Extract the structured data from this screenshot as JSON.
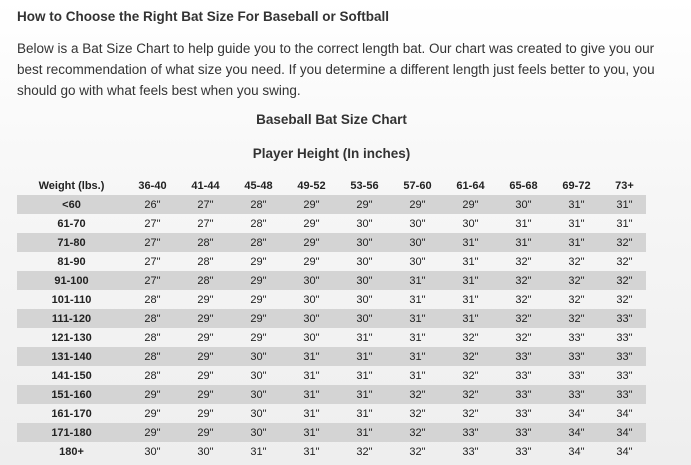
{
  "header": {
    "title": "How to Choose the Right Bat Size For Baseball or Softball"
  },
  "intro": "Below is a Bat Size Chart to help guide you to the correct length bat. Our chart was created to give you our best recommendation of what size you need. If you determine a different length just feels better to you, you should go with what feels best when you swing.",
  "table": {
    "title": "Baseball Bat Size Chart",
    "subtitle": "Player Height (In inches)",
    "header": [
      "Weight (lbs.)",
      "36-40",
      "41-44",
      "45-48",
      "49-52",
      "53-56",
      "57-60",
      "61-64",
      "65-68",
      "69-72",
      "73+"
    ],
    "rows": [
      [
        "<60",
        "26\"",
        "27\"",
        "28\"",
        "29\"",
        "29\"",
        "29\"",
        "29\"",
        "30\"",
        "31\"",
        "31\""
      ],
      [
        "61-70",
        "27\"",
        "27\"",
        "28\"",
        "29\"",
        "30\"",
        "30\"",
        "30\"",
        "31\"",
        "31\"",
        "31\""
      ],
      [
        "71-80",
        "27\"",
        "28\"",
        "28\"",
        "29\"",
        "30\"",
        "30\"",
        "31\"",
        "31\"",
        "31\"",
        "32\""
      ],
      [
        "81-90",
        "27\"",
        "28\"",
        "29\"",
        "29\"",
        "30\"",
        "30\"",
        "31\"",
        "32\"",
        "32\"",
        "32\""
      ],
      [
        "91-100",
        "27\"",
        "28\"",
        "29\"",
        "30\"",
        "30\"",
        "31\"",
        "31\"",
        "32\"",
        "32\"",
        "32\""
      ],
      [
        "101-110",
        "28\"",
        "29\"",
        "29\"",
        "30\"",
        "30\"",
        "31\"",
        "31\"",
        "32\"",
        "32\"",
        "32\""
      ],
      [
        "111-120",
        "28\"",
        "29\"",
        "29\"",
        "30\"",
        "30\"",
        "31\"",
        "31\"",
        "32\"",
        "32\"",
        "33\""
      ],
      [
        "121-130",
        "28\"",
        "29\"",
        "29\"",
        "30\"",
        "31\"",
        "31\"",
        "32\"",
        "32\"",
        "33\"",
        "33\""
      ],
      [
        "131-140",
        "28\"",
        "29\"",
        "30\"",
        "31\"",
        "31\"",
        "31\"",
        "32\"",
        "33\"",
        "33\"",
        "33\""
      ],
      [
        "141-150",
        "28\"",
        "29\"",
        "30\"",
        "31\"",
        "31\"",
        "31\"",
        "32\"",
        "33\"",
        "33\"",
        "33\""
      ],
      [
        "151-160",
        "29\"",
        "29\"",
        "30\"",
        "31\"",
        "31\"",
        "32\"",
        "32\"",
        "33\"",
        "33\"",
        "33\""
      ],
      [
        "161-170",
        "29\"",
        "29\"",
        "30\"",
        "31\"",
        "31\"",
        "32\"",
        "32\"",
        "33\"",
        "34\"",
        "34\""
      ],
      [
        "171-180",
        "29\"",
        "29\"",
        "30\"",
        "31\"",
        "31\"",
        "32\"",
        "33\"",
        "33\"",
        "34\"",
        "34\""
      ],
      [
        "180+",
        "30\"",
        "30\"",
        "31\"",
        "31\"",
        "32\"",
        "32\"",
        "33\"",
        "33\"",
        "34\"",
        "34\""
      ]
    ]
  }
}
